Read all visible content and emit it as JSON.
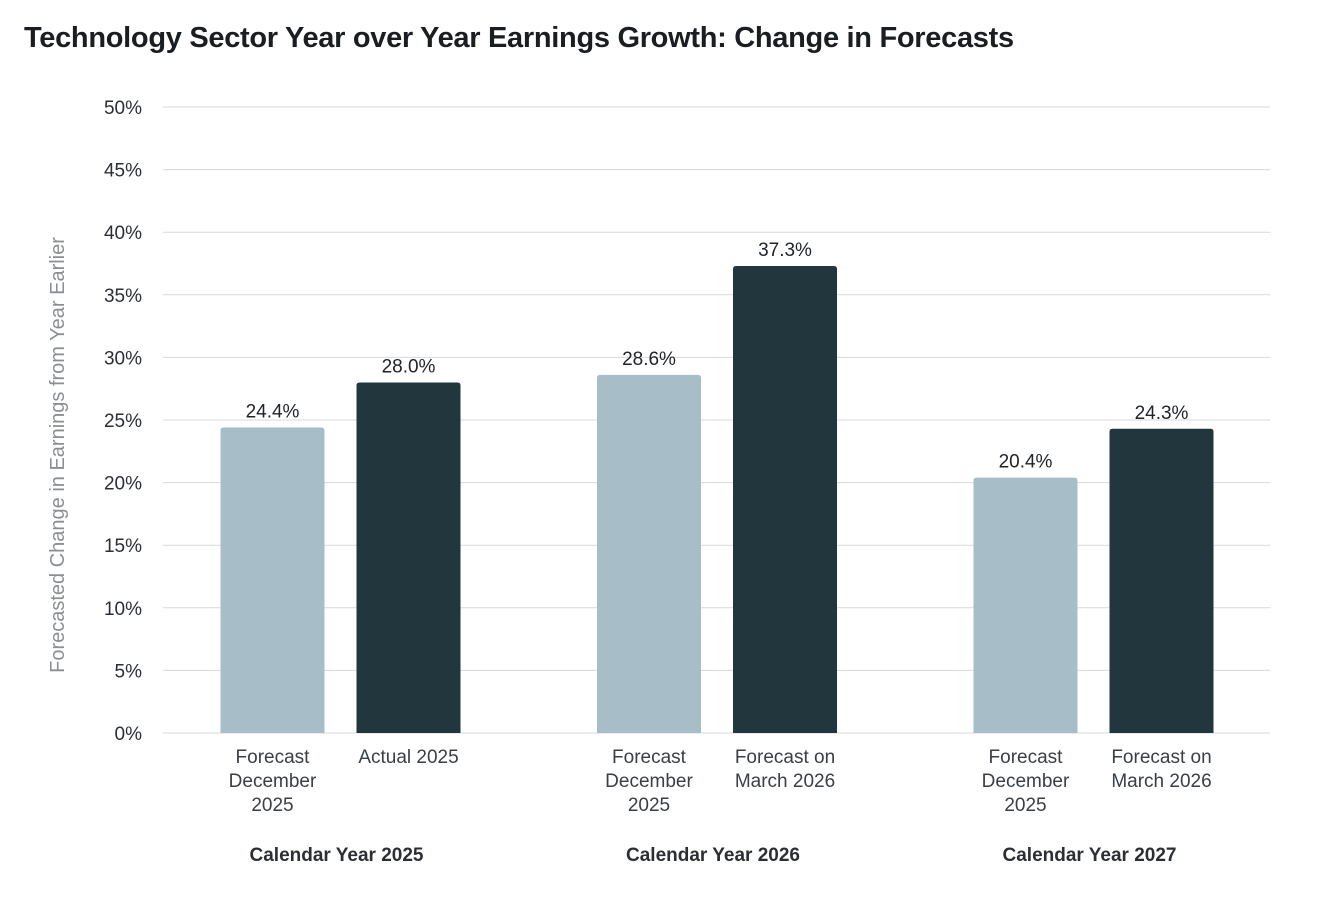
{
  "chart_data": {
    "type": "bar",
    "title": "Technology Sector Year over Year Earnings Growth: Change in Forecasts",
    "ylabel": "Forecasted Change in Earnings from Year Earlier",
    "xlabel": "",
    "ylim": [
      0,
      50
    ],
    "yticks": [
      0,
      5,
      10,
      15,
      20,
      25,
      30,
      35,
      40,
      45,
      50
    ],
    "ytick_labels": [
      "0%",
      "5%",
      "10%",
      "15%",
      "20%",
      "25%",
      "30%",
      "35%",
      "40%",
      "45%",
      "50%"
    ],
    "grid": true,
    "colors": {
      "light": "#a7bec8",
      "dark": "#21363d"
    },
    "groups": [
      {
        "label": "Calendar Year 2025",
        "bars": [
          {
            "category": "Forecast December 2025",
            "lines": [
              "Forecast",
              "December",
              "2025"
            ],
            "value": 24.4,
            "label": "24.4%",
            "color": "light"
          },
          {
            "category": "Actual 2025",
            "lines": [
              "Actual 2025"
            ],
            "value": 28.0,
            "label": "28.0%",
            "color": "dark"
          }
        ]
      },
      {
        "label": "Calendar Year 2026",
        "bars": [
          {
            "category": "Forecast December 2025",
            "lines": [
              "Forecast",
              "December",
              "2025"
            ],
            "value": 28.6,
            "label": "28.6%",
            "color": "light"
          },
          {
            "category": "Forecast on March 2026",
            "lines": [
              "Forecast on",
              "March 2026"
            ],
            "value": 37.3,
            "label": "37.3%",
            "color": "dark"
          }
        ]
      },
      {
        "label": "Calendar Year 2027",
        "bars": [
          {
            "category": "Forecast December 2025",
            "lines": [
              "Forecast",
              "December",
              "2025"
            ],
            "value": 20.4,
            "label": "20.4%",
            "color": "light"
          },
          {
            "category": "Forecast on March 2026",
            "lines": [
              "Forecast on",
              "March 2026"
            ],
            "value": 24.3,
            "label": "24.3%",
            "color": "dark"
          }
        ]
      }
    ]
  }
}
